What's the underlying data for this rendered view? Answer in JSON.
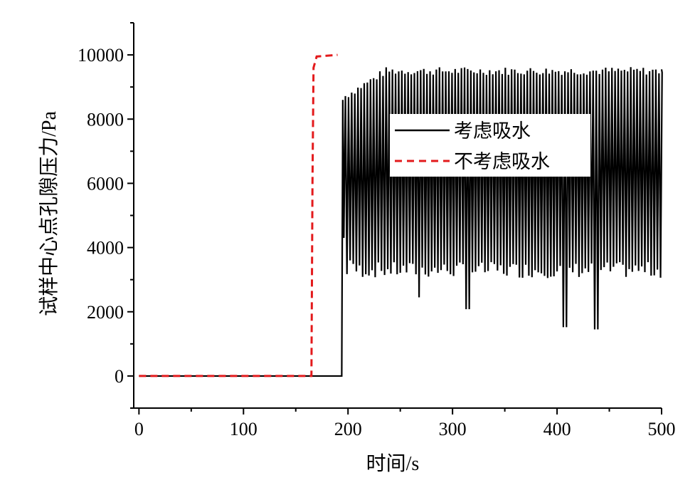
{
  "chart_data": {
    "type": "line",
    "xlabel": "时间/s",
    "ylabel": "试样中心点孔隙压力/Pa",
    "xlim": [
      -5,
      500
    ],
    "ylim": [
      -1000,
      11000
    ],
    "xticks": [
      0,
      100,
      200,
      300,
      400,
      500
    ],
    "yticks": [
      0,
      2000,
      4000,
      6000,
      8000,
      10000
    ],
    "grid": false,
    "legend_position": "right, upper-middle",
    "series": [
      {
        "name": "考虑吸水",
        "color": "#000000",
        "style": "solid",
        "description_points": [
          [
            0,
            0
          ],
          [
            194,
            0
          ],
          [
            195,
            8600
          ],
          [
            500,
            9550
          ]
        ],
        "oscillation": {
          "start": 195,
          "end": 500,
          "period_s": 3,
          "peaks_approx": 9500,
          "troughs_approx": 3300,
          "deep_troughs": [
            [
              197,
              4300
            ],
            [
              203,
              3600
            ],
            [
              269,
              2450
            ],
            [
              316,
              2080
            ],
            [
              409,
              1520
            ],
            [
              439,
              1450
            ]
          ]
        }
      },
      {
        "name": "不考虑吸水",
        "color": "#e31a1c",
        "style": "dashed",
        "points": [
          [
            0,
            0
          ],
          [
            165,
            0
          ],
          [
            166,
            6000
          ],
          [
            167,
            9600
          ],
          [
            170,
            9950
          ],
          [
            190,
            10000
          ]
        ]
      }
    ]
  }
}
